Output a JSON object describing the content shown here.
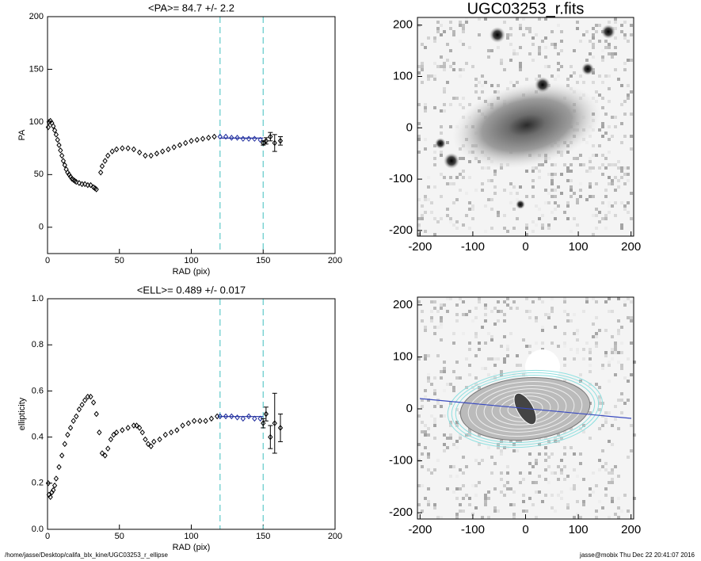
{
  "chart_data": [
    {
      "type": "scatter",
      "title": "<PA>=  84.7 +/-   2.2",
      "x_label": "RAD (pix)",
      "y_label": "PA",
      "xlim": [
        0,
        200
      ],
      "ylim": [
        -25,
        200
      ],
      "xticks": [
        0,
        50,
        100,
        150,
        200
      ],
      "yticks": [
        0,
        50,
        100,
        150,
        200
      ],
      "fit_range": [
        120,
        150
      ],
      "fit_value": 84.7,
      "fit_color": "#1f2d9e",
      "range_color": "#5fc9c9",
      "series": [
        {
          "color": "#000000",
          "x": [
            0.5,
            1,
            2,
            3,
            4,
            5,
            6,
            7,
            8,
            9,
            10,
            11,
            12,
            13,
            14,
            15,
            16,
            17,
            18,
            19,
            20,
            22,
            24,
            26,
            28,
            30,
            32,
            33,
            34,
            37,
            38,
            40,
            42,
            45,
            48,
            52,
            56,
            60,
            64,
            68,
            72,
            76,
            80,
            84,
            88,
            92,
            96,
            100,
            104,
            108,
            112,
            116
          ],
          "values": [
            95,
            100,
            101,
            99,
            96,
            92,
            88,
            83,
            78,
            73,
            68,
            63,
            59,
            55,
            52,
            50,
            48,
            46,
            45,
            44,
            43,
            42,
            41,
            41,
            40,
            40,
            38,
            37,
            36,
            52,
            58,
            63,
            68,
            72,
            74,
            75,
            75,
            74,
            71,
            68,
            68,
            70,
            72,
            74,
            76,
            78,
            80,
            82,
            83,
            84,
            85,
            86
          ]
        },
        {
          "color": "#1f2d9e",
          "x": [
            120,
            124,
            128,
            132,
            136,
            140,
            144,
            148
          ],
          "values": [
            86,
            86,
            85,
            85,
            84,
            84,
            84,
            83
          ]
        },
        {
          "color": "#000000",
          "x": [
            150,
            152,
            155,
            158,
            162
          ],
          "values": [
            80,
            82,
            86,
            80,
            82
          ],
          "errors": [
            2,
            3,
            4,
            8,
            4
          ]
        }
      ]
    },
    {
      "type": "scatter",
      "title": "<ELL>= 0.489 +/-  0.017",
      "x_label": "RAD (pix)",
      "y_label": "ellipticity",
      "xlim": [
        0,
        200
      ],
      "ylim": [
        0,
        1
      ],
      "xticks": [
        0,
        50,
        100,
        150,
        200
      ],
      "yticks": [
        {
          "value": 0,
          "label": "0.0"
        },
        0.2,
        0.4,
        0.6,
        0.8,
        {
          "value": 1,
          "label": "1.0"
        }
      ],
      "fit_range": [
        120,
        150
      ],
      "fit_value": 0.489,
      "fit_color": "#1f2d9e",
      "range_color": "#5fc9c9",
      "series": [
        {
          "color": "#000000",
          "x": [
            0.5,
            1,
            2,
            3,
            4,
            5,
            6,
            8,
            10,
            12,
            14,
            16,
            18,
            20,
            22,
            24,
            26,
            28,
            30,
            32,
            34,
            36,
            38,
            40,
            42,
            44,
            46,
            48,
            52,
            56,
            60,
            62,
            64,
            66,
            68,
            70,
            72,
            74,
            78,
            82,
            86,
            90,
            94,
            98,
            102,
            106,
            110,
            114,
            118
          ],
          "values": [
            0.2,
            0.15,
            0.14,
            0.16,
            0.17,
            0.19,
            0.22,
            0.27,
            0.32,
            0.37,
            0.41,
            0.44,
            0.47,
            0.49,
            0.52,
            0.54,
            0.56,
            0.575,
            0.575,
            0.55,
            0.5,
            0.42,
            0.33,
            0.32,
            0.35,
            0.39,
            0.41,
            0.42,
            0.43,
            0.44,
            0.45,
            0.45,
            0.44,
            0.42,
            0.39,
            0.37,
            0.36,
            0.38,
            0.39,
            0.41,
            0.42,
            0.43,
            0.45,
            0.46,
            0.47,
            0.47,
            0.47,
            0.48,
            0.49
          ]
        },
        {
          "color": "#1f2d9e",
          "x": [
            120,
            124,
            128,
            132,
            136,
            140,
            144,
            148
          ],
          "values": [
            0.49,
            0.49,
            0.49,
            0.485,
            0.48,
            0.49,
            0.48,
            0.48
          ]
        },
        {
          "color": "#000000",
          "x": [
            150,
            152,
            155,
            158,
            162
          ],
          "values": [
            0.46,
            0.5,
            0.4,
            0.46,
            0.44
          ],
          "errors": [
            0.02,
            0.03,
            0.05,
            0.13,
            0.06
          ]
        }
      ]
    },
    {
      "type": "image",
      "title": "UGC03253_r.fits",
      "xlim": [
        -205,
        205
      ],
      "ylim": [
        -211,
        215
      ],
      "xticks": [
        -200,
        -100,
        0,
        100,
        200
      ],
      "yticks": [
        -200,
        -100,
        0,
        100,
        200
      ]
    },
    {
      "type": "image",
      "xlim": [
        -205,
        205
      ],
      "ylim": [
        -212,
        215
      ],
      "xticks": [
        -200,
        -100,
        0,
        100,
        200
      ],
      "yticks": [
        -200,
        -100,
        0,
        100,
        200
      ]
    }
  ],
  "footer": {
    "left": "/home/jasse/Desktop/califa_blx_kine/UGC03253_r_ellipse",
    "right": "jasse@mobix  Thu Dec 22 20:41:07 2016"
  }
}
